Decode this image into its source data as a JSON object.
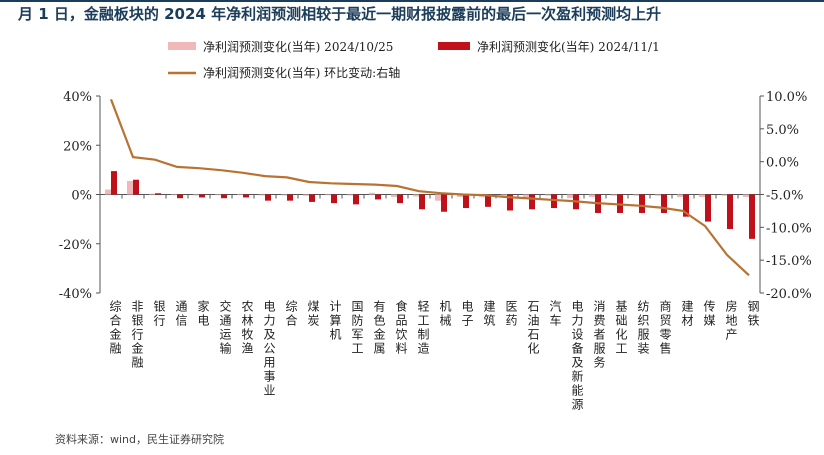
{
  "headline": "月 1 日，金融板块的 2024 年净利润预测相较于最近一期财报披露前的最后一次盈利预测均上升",
  "source": "资料来源：wind，民生证券研究院",
  "colors": {
    "series_a": "#f0b8b8",
    "series_b": "#c0101a",
    "series_c": "#b87333",
    "axis": "#555555"
  },
  "chart_data": {
    "type": "bar",
    "categories": [
      "综合金融",
      "非银行金融",
      "银行",
      "通信",
      "家电",
      "交通运输",
      "农林牧渔",
      "电力及公用事业",
      "综合",
      "煤炭",
      "计算机",
      "国防军工",
      "有色金属",
      "食品饮料",
      "轻工制造",
      "机械",
      "电子",
      "建筑",
      "医药",
      "石油石化",
      "汽车",
      "电力设备及新能源",
      "消费者服务",
      "基础化工",
      "纺织服装",
      "商贸零售",
      "建材",
      "传媒",
      "房地产",
      "钢铁"
    ],
    "series": [
      {
        "name": "净利润预测变化(当年) 2024/10/25",
        "type": "bar",
        "axis": "left",
        "values": [
          2,
          5.5,
          0.3,
          -0.3,
          -0.4,
          -0.3,
          -0.2,
          -0.4,
          -0.4,
          -0.5,
          -0.3,
          -0.4,
          0.7,
          -1,
          -0.8,
          -2.5,
          -1,
          -1,
          -0.5,
          -1,
          -0.5,
          -1.5,
          -1,
          -0.5,
          -0.5,
          -0.5,
          -1,
          -1,
          -0.5,
          -1
        ]
      },
      {
        "name": "净利润预测变化(当年) 2024/11/1",
        "type": "bar",
        "axis": "left",
        "values": [
          9.5,
          6,
          0.5,
          -1.5,
          -1.2,
          -1.5,
          -1.2,
          -2.5,
          -2.5,
          -3,
          -3.5,
          -4,
          -2,
          -3.5,
          -6,
          -7,
          -5.5,
          -5,
          -6.5,
          -6,
          -5.5,
          -6,
          -7.5,
          -7.5,
          -7.5,
          -7.5,
          -9,
          -11,
          -14,
          -18
        ]
      },
      {
        "name": "净利润预测变化(当年) 环比变动:右轴",
        "type": "line",
        "axis": "right",
        "values": [
          9.5,
          0.7,
          0.3,
          -0.8,
          -1.0,
          -1.3,
          -1.7,
          -2.2,
          -2.4,
          -3.1,
          -3.3,
          -3.4,
          -3.5,
          -3.7,
          -4.5,
          -4.8,
          -5.0,
          -5.1,
          -5.4,
          -5.6,
          -5.8,
          -6.0,
          -6.3,
          -6.5,
          -6.7,
          -7.0,
          -7.5,
          -9.8,
          -14.2,
          -17.3
        ]
      }
    ],
    "y_left": {
      "ticks": [
        "40%",
        "20%",
        "0%",
        "-20%",
        "-40%"
      ],
      "range": [
        -40,
        40
      ]
    },
    "y_right": {
      "ticks": [
        "10.0%",
        "5.0%",
        "0.0%",
        "-5.0%",
        "-10.0%",
        "-15.0%",
        "-20.0%"
      ],
      "range": [
        -20,
        10
      ]
    },
    "legend_position": "top"
  }
}
